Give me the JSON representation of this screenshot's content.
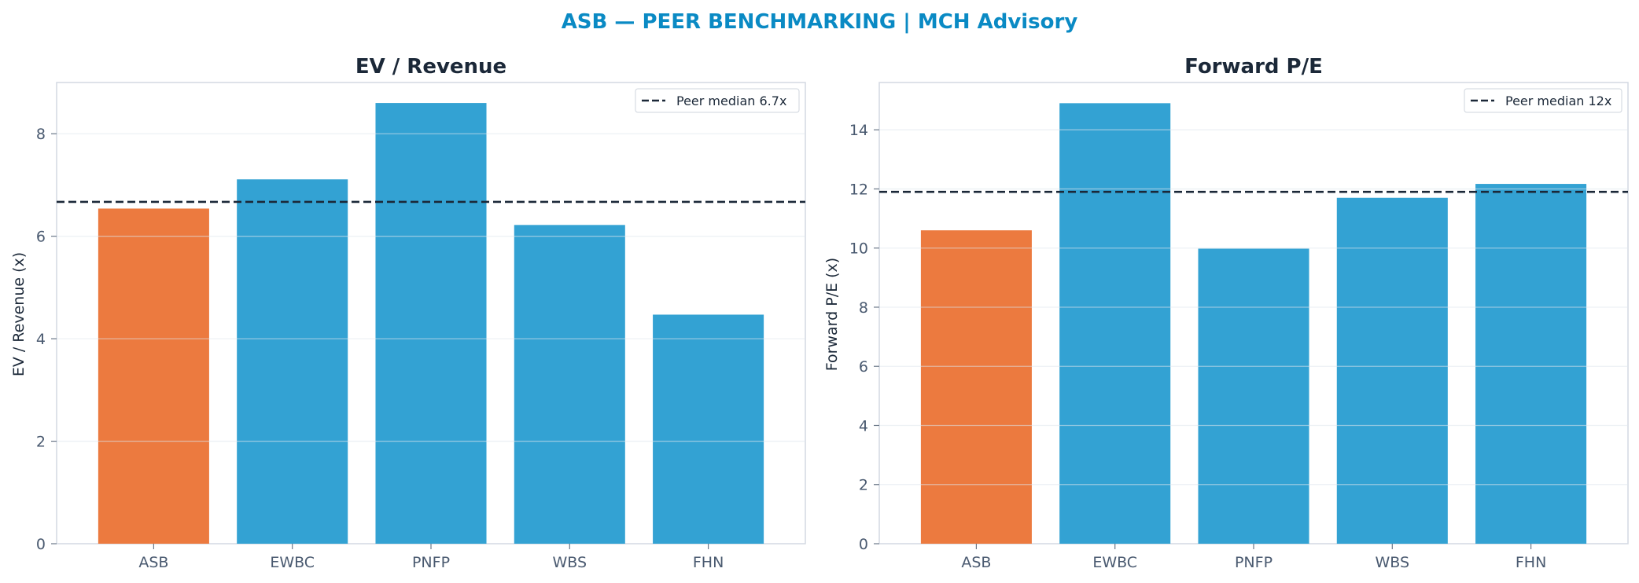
{
  "figure": {
    "suptitle": "ASB — PEER BENCHMARKING | MCH Advisory",
    "title_color": "#0a8ac4"
  },
  "colors": {
    "highlight": "#ec7a3f",
    "peer": "#33a2d3",
    "median_line": "#1b2838"
  },
  "chart_data": [
    {
      "type": "bar",
      "title": "EV / Revenue",
      "xlabel": "",
      "ylabel": "EV / Revenue (x)",
      "categories": [
        "ASB",
        "EWBC",
        "PNFP",
        "WBS",
        "FHN"
      ],
      "values": [
        6.54,
        7.11,
        8.6,
        6.22,
        4.47
      ],
      "highlight": "ASB",
      "ylim": [
        0,
        9.0
      ],
      "yticks": [
        0,
        2,
        4,
        6,
        8
      ],
      "ytick_labels": [
        "0",
        "2",
        "4",
        "6",
        "8"
      ],
      "reference_line": {
        "value": 6.67,
        "label": "Peer median 6.7x"
      },
      "legend_position": "top-right",
      "grid": true
    },
    {
      "type": "bar",
      "title": "Forward P/E",
      "xlabel": "",
      "ylabel": "Forward P/E (x)",
      "categories": [
        "ASB",
        "EWBC",
        "PNFP",
        "WBS",
        "FHN"
      ],
      "values": [
        10.6,
        14.9,
        9.98,
        11.7,
        12.17
      ],
      "highlight": "ASB",
      "ylim": [
        0,
        15.6
      ],
      "yticks": [
        0,
        2,
        4,
        6,
        8,
        10,
        12,
        14
      ],
      "ytick_labels": [
        "0",
        "2",
        "4",
        "6",
        "8",
        "10",
        "12",
        "14"
      ],
      "reference_line": {
        "value": 11.9,
        "label": "Peer median 12x"
      },
      "legend_position": "top-right",
      "grid": true
    }
  ]
}
